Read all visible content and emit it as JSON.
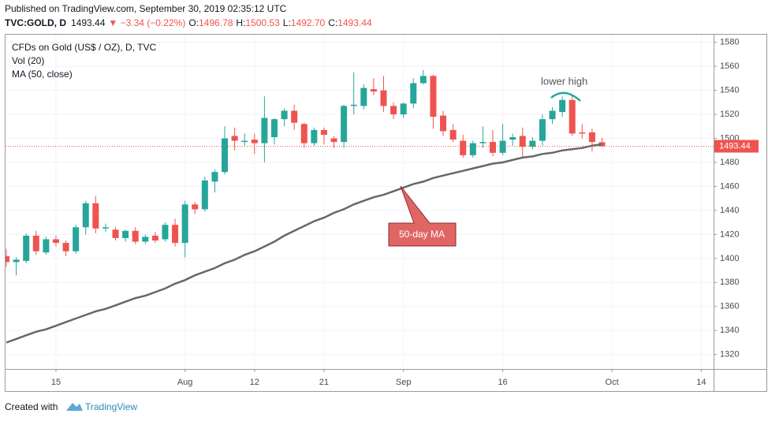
{
  "header": {
    "published": "Published on TradingView.com, September 30, 2019 02:35:12 UTC",
    "symbol": "TVC:GOLD, D",
    "last": "1493.44",
    "change": "▼ −3.34 (−0.22%)",
    "ohlc": [
      {
        "label": "O:",
        "value": "1496.78"
      },
      {
        "label": "H:",
        "value": "1500.53"
      },
      {
        "label": "L:",
        "value": "1492.70"
      },
      {
        "label": "C:",
        "value": "1493.44"
      }
    ]
  },
  "footer": {
    "created": "Created with",
    "brand": "TradingView"
  },
  "chart_data": {
    "type": "candlestick",
    "title": "CFDs on Gold (US$ / OZ), D, TVC",
    "indicators": [
      "Vol (20)"
    ],
    "up_color": "#26a69a",
    "down_color": "#ef5350",
    "x": [
      "2019-07-08",
      "2019-07-09",
      "2019-07-10",
      "2019-07-11",
      "2019-07-12",
      "2019-07-15",
      "2019-07-16",
      "2019-07-17",
      "2019-07-18",
      "2019-07-19",
      "2019-07-22",
      "2019-07-23",
      "2019-07-24",
      "2019-07-25",
      "2019-07-26",
      "2019-07-29",
      "2019-07-30",
      "2019-07-31",
      "2019-08-01",
      "2019-08-02",
      "2019-08-05",
      "2019-08-06",
      "2019-08-07",
      "2019-08-08",
      "2019-08-09",
      "2019-08-12",
      "2019-08-13",
      "2019-08-14",
      "2019-08-15",
      "2019-08-16",
      "2019-08-19",
      "2019-08-20",
      "2019-08-21",
      "2019-08-22",
      "2019-08-23",
      "2019-08-26",
      "2019-08-27",
      "2019-08-28",
      "2019-08-29",
      "2019-08-30",
      "2019-09-02",
      "2019-09-03",
      "2019-09-04",
      "2019-09-05",
      "2019-09-06",
      "2019-09-09",
      "2019-09-10",
      "2019-09-11",
      "2019-09-12",
      "2019-09-13",
      "2019-09-16",
      "2019-09-17",
      "2019-09-18",
      "2019-09-19",
      "2019-09-20",
      "2019-09-23",
      "2019-09-24",
      "2019-09-25",
      "2019-09-26",
      "2019-09-27",
      "2019-09-30"
    ],
    "series": [
      {
        "name": "CFDs on Gold (US$ / OZ), D, TVC",
        "open": [
          1402,
          1397,
          1398,
          1419,
          1405,
          1416,
          1413,
          1406,
          1426,
          1446,
          1425,
          1424,
          1417,
          1423,
          1414,
          1419,
          1416,
          1428,
          1413,
          1445,
          1441,
          1464,
          1472,
          1502,
          1497,
          1499,
          1496,
          1501,
          1516,
          1523,
          1512,
          1496,
          1507,
          1500,
          1497,
          1527,
          1527,
          1541,
          1540,
          1527,
          1520,
          1529,
          1546,
          1552,
          1519,
          1507,
          1498,
          1486,
          1496,
          1497,
          1488,
          1499,
          1502,
          1493,
          1498,
          1516,
          1522,
          1532,
          1505,
          1505,
          1496.78
        ],
        "high": [
          1408,
          1401,
          1421,
          1423,
          1418,
          1419,
          1415,
          1428,
          1448,
          1452,
          1429,
          1426,
          1424,
          1426,
          1420,
          1422,
          1430,
          1433,
          1448,
          1447,
          1468,
          1474,
          1510,
          1509,
          1504,
          1504,
          1535,
          1517,
          1525,
          1528,
          1513,
          1509,
          1509,
          1502,
          1528,
          1555,
          1545,
          1550,
          1552,
          1530,
          1530,
          1550,
          1557,
          1553,
          1523,
          1512,
          1503,
          1498,
          1510,
          1507,
          1512,
          1504,
          1509,
          1501,
          1520,
          1526,
          1535,
          1535,
          1512,
          1508,
          1500.53
        ],
        "low": [
          1393,
          1386,
          1396,
          1403,
          1403,
          1410,
          1402,
          1404,
          1420,
          1421,
          1422,
          1415,
          1414,
          1412,
          1412,
          1413,
          1414,
          1410,
          1401,
          1437,
          1439,
          1455,
          1470,
          1490,
          1494,
          1487,
          1480,
          1495,
          1510,
          1507,
          1492,
          1494,
          1495,
          1492,
          1492,
          1520,
          1524,
          1536,
          1522,
          1516,
          1517,
          1525,
          1545,
          1508,
          1502,
          1497,
          1484,
          1484,
          1492,
          1485,
          1486,
          1494,
          1484,
          1491,
          1494,
          1512,
          1518,
          1502,
          1500,
          1489,
          1492.7
        ],
        "close": [
          1397,
          1399,
          1419,
          1406,
          1416,
          1413,
          1406,
          1426,
          1446,
          1425,
          1426,
          1417,
          1423,
          1414,
          1418,
          1415,
          1428,
          1413,
          1445,
          1441,
          1465,
          1472,
          1500,
          1498,
          1498,
          1496,
          1517,
          1516,
          1523,
          1513,
          1496,
          1507,
          1503,
          1497,
          1527,
          1528,
          1542,
          1539,
          1527,
          1520,
          1529,
          1546,
          1552,
          1518,
          1506,
          1499,
          1486,
          1496,
          1497,
          1488,
          1498,
          1501,
          1493,
          1498,
          1516,
          1523,
          1532,
          1504,
          1504,
          1497,
          1493.44
        ]
      },
      {
        "name": "MA (50, close)",
        "color": "#676767",
        "values": [
          1330,
          1333,
          1336,
          1339,
          1341,
          1344,
          1347,
          1350,
          1353,
          1356,
          1358,
          1361,
          1364,
          1367,
          1369,
          1372,
          1375,
          1379,
          1382,
          1386,
          1389,
          1392,
          1396,
          1399,
          1403,
          1406,
          1410,
          1414,
          1419,
          1423,
          1427,
          1431,
          1434,
          1438,
          1441,
          1445,
          1448,
          1451,
          1453,
          1456,
          1459,
          1462,
          1464,
          1467,
          1469,
          1471,
          1473,
          1475,
          1477,
          1479,
          1480,
          1482,
          1484,
          1485,
          1487,
          1488,
          1490,
          1491,
          1492,
          1494,
          1495
        ]
      }
    ],
    "xlim": [
      "2019-07-08",
      "2019-10-15"
    ],
    "xticks": [
      {
        "value": "2019-07-15",
        "label": "15"
      },
      {
        "value": "2019-08-01",
        "label": "Aug"
      },
      {
        "value": "2019-08-12",
        "label": "12"
      },
      {
        "value": "2019-08-21",
        "label": "21"
      },
      {
        "value": "2019-09-02",
        "label": "Sep"
      },
      {
        "value": "2019-09-16",
        "label": "16"
      },
      {
        "value": "2019-10-01",
        "label": "Oct"
      },
      {
        "value": "2019-10-14",
        "label": "14"
      }
    ],
    "ylim": [
      1308,
      1587
    ],
    "yticks": [
      1320,
      1340,
      1360,
      1380,
      1400,
      1420,
      1440,
      1460,
      1480,
      1500,
      1520,
      1540,
      1560,
      1580
    ],
    "grid": true,
    "annotations": [
      "lower high",
      "50-day MA"
    ]
  }
}
